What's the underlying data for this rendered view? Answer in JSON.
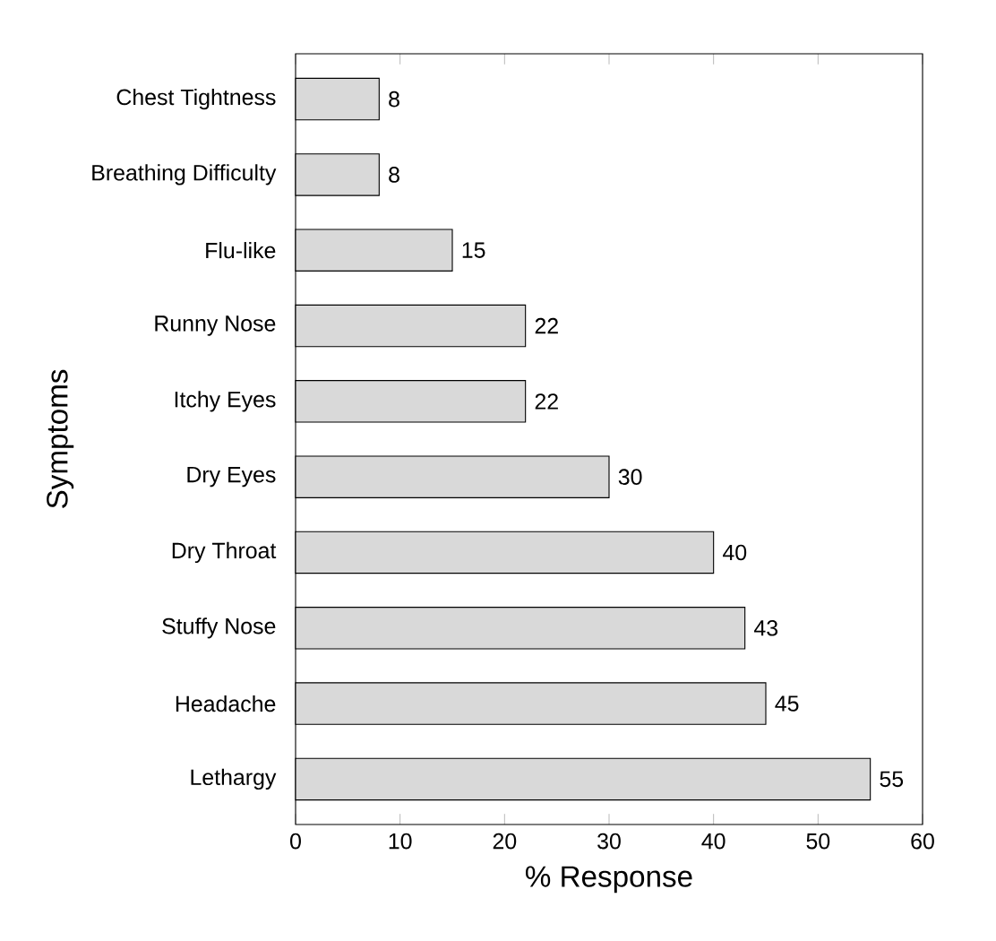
{
  "chart_data": {
    "type": "bar",
    "orientation": "horizontal",
    "xlabel": "% Response",
    "ylabel": "Symptoms",
    "categories": [
      "Chest Tightness",
      "Breathing Difficulty",
      "Flu-like",
      "Runny Nose",
      "Itchy Eyes",
      "Dry Eyes",
      "Dry Throat",
      "Stuffy Nose",
      "Headache",
      "Lethargy"
    ],
    "values": [
      8,
      8,
      15,
      22,
      22,
      30,
      40,
      43,
      45,
      55
    ],
    "color": "#d9d9d9",
    "xlim": [
      0,
      60
    ],
    "xticks": [
      0,
      10,
      20,
      30,
      40,
      50,
      60
    ],
    "data_labels": true
  }
}
